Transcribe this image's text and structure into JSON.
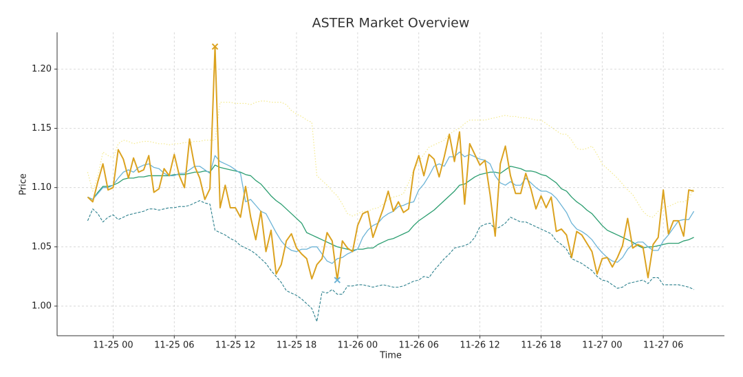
{
  "chart_data": {
    "type": "line",
    "title": "ASTER Market Overview",
    "x_label": "Time",
    "y_label": "Price",
    "x": [
      "11-24 21:30",
      "11-24 22:00",
      "11-24 22:30",
      "11-24 23:00",
      "11-24 23:30",
      "11-25 00:00",
      "11-25 00:30",
      "11-25 01:00",
      "11-25 01:30",
      "11-25 02:00",
      "11-25 02:30",
      "11-25 03:00",
      "11-25 03:30",
      "11-25 04:00",
      "11-25 04:30",
      "11-25 05:00",
      "11-25 05:30",
      "11-25 06:00",
      "11-25 06:30",
      "11-25 07:00",
      "11-25 07:30",
      "11-25 08:00",
      "11-25 08:30",
      "11-25 09:00",
      "11-25 09:30",
      "11-25 10:00",
      "11-25 10:30",
      "11-25 11:00",
      "11-25 11:30",
      "11-25 12:00",
      "11-25 12:30",
      "11-25 13:00",
      "11-25 13:30",
      "11-25 14:00",
      "11-25 14:30",
      "11-25 15:00",
      "11-25 15:30",
      "11-25 16:00",
      "11-25 16:30",
      "11-25 17:00",
      "11-25 17:30",
      "11-25 18:00",
      "11-25 18:30",
      "11-25 19:00",
      "11-25 19:30",
      "11-25 20:00",
      "11-25 20:30",
      "11-25 21:00",
      "11-25 21:30",
      "11-25 22:00",
      "11-25 22:30",
      "11-25 23:00",
      "11-25 23:30",
      "11-26 00:00",
      "11-26 00:30",
      "11-26 01:00",
      "11-26 01:30",
      "11-26 02:00",
      "11-26 02:30",
      "11-26 03:00",
      "11-26 03:30",
      "11-26 04:00",
      "11-26 04:30",
      "11-26 05:00",
      "11-26 05:30",
      "11-26 06:00",
      "11-26 06:30",
      "11-26 07:00",
      "11-26 07:30",
      "11-26 08:00",
      "11-26 08:30",
      "11-26 09:00",
      "11-26 09:30",
      "11-26 10:00",
      "11-26 10:30",
      "11-26 11:00",
      "11-26 11:30",
      "11-26 12:00",
      "11-26 12:30",
      "11-26 13:00",
      "11-26 13:30",
      "11-26 14:00",
      "11-26 14:30",
      "11-26 15:00",
      "11-26 15:30",
      "11-26 16:00",
      "11-26 16:30",
      "11-26 17:00",
      "11-26 17:30",
      "11-26 18:00",
      "11-26 18:30",
      "11-26 19:00",
      "11-26 19:30",
      "11-26 20:00",
      "11-26 20:30",
      "11-26 21:00",
      "11-26 21:30",
      "11-26 22:00",
      "11-26 22:30",
      "11-26 23:00",
      "11-26 23:30",
      "11-27 00:00",
      "11-27 00:30",
      "11-27 01:00",
      "11-27 01:30",
      "11-27 02:00",
      "11-27 02:30",
      "11-27 03:00",
      "11-27 03:30",
      "11-27 04:00",
      "11-27 04:30",
      "11-27 05:00",
      "11-27 05:30",
      "11-27 06:00",
      "11-27 06:30",
      "11-27 07:00",
      "11-27 07:30",
      "11-27 08:00",
      "11-27 08:30",
      "11-27 09:00"
    ],
    "series": [
      {
        "color": "#f3e98a",
        "style": "dotted",
        "width": 1.2,
        "values": [
          1.113,
          1.097,
          1.11,
          1.13,
          1.127,
          1.125,
          1.137,
          1.14,
          1.139,
          1.137,
          1.138,
          1.139,
          1.139,
          1.138,
          1.137,
          1.137,
          1.136,
          1.137,
          1.137,
          1.138,
          1.138,
          1.139,
          1.139,
          1.14,
          1.14,
          1.14,
          1.172,
          1.172,
          1.172,
          1.171,
          1.171,
          1.171,
          1.17,
          1.172,
          1.173,
          1.173,
          1.172,
          1.172,
          1.172,
          1.17,
          1.165,
          1.162,
          1.16,
          1.157,
          1.155,
          1.11,
          1.106,
          1.102,
          1.097,
          1.093,
          1.086,
          1.078,
          1.076,
          1.078,
          1.08,
          1.08,
          1.082,
          1.083,
          1.086,
          1.09,
          1.092,
          1.093,
          1.095,
          1.104,
          1.115,
          1.122,
          1.128,
          1.134,
          1.136,
          1.138,
          1.14,
          1.145,
          1.148,
          1.15,
          1.154,
          1.157,
          1.157,
          1.157,
          1.157,
          1.158,
          1.159,
          1.16,
          1.161,
          1.16,
          1.16,
          1.159,
          1.159,
          1.158,
          1.157,
          1.157,
          1.154,
          1.151,
          1.148,
          1.145,
          1.145,
          1.14,
          1.133,
          1.132,
          1.133,
          1.135,
          1.128,
          1.12,
          1.116,
          1.112,
          1.108,
          1.103,
          1.098,
          1.094,
          1.087,
          1.08,
          1.076,
          1.075,
          1.08,
          1.083,
          1.084,
          1.086,
          1.088,
          1.088,
          1.09,
          1.1
        ]
      },
      {
        "color": "#2a7f8c",
        "style": "dashed",
        "width": 1.1,
        "values": [
          1.072,
          1.082,
          1.078,
          1.071,
          1.075,
          1.077,
          1.073,
          1.075,
          1.077,
          1.078,
          1.079,
          1.08,
          1.082,
          1.082,
          1.081,
          1.082,
          1.083,
          1.083,
          1.084,
          1.084,
          1.085,
          1.087,
          1.089,
          1.087,
          1.086,
          1.064,
          1.062,
          1.06,
          1.057,
          1.055,
          1.051,
          1.049,
          1.047,
          1.044,
          1.04,
          1.036,
          1.03,
          1.025,
          1.02,
          1.013,
          1.011,
          1.009,
          1.006,
          1.002,
          0.998,
          0.987,
          1.012,
          1.011,
          1.014,
          1.01,
          1.01,
          1.017,
          1.017,
          1.018,
          1.018,
          1.017,
          1.016,
          1.017,
          1.018,
          1.017,
          1.016,
          1.016,
          1.017,
          1.019,
          1.021,
          1.022,
          1.025,
          1.024,
          1.03,
          1.035,
          1.04,
          1.044,
          1.049,
          1.05,
          1.051,
          1.053,
          1.058,
          1.067,
          1.069,
          1.07,
          1.065,
          1.067,
          1.07,
          1.075,
          1.073,
          1.071,
          1.071,
          1.069,
          1.067,
          1.065,
          1.063,
          1.061,
          1.055,
          1.052,
          1.048,
          1.04,
          1.038,
          1.036,
          1.033,
          1.03,
          1.025,
          1.022,
          1.021,
          1.018,
          1.015,
          1.016,
          1.019,
          1.02,
          1.021,
          1.022,
          1.019,
          1.024,
          1.024,
          1.018,
          1.018,
          1.018,
          1.018,
          1.017,
          1.016,
          1.014
        ]
      },
      {
        "color": "#2a9d6f",
        "style": "solid",
        "width": 1.3,
        "values": [
          1.092,
          1.09,
          1.096,
          1.101,
          1.101,
          1.102,
          1.104,
          1.107,
          1.108,
          1.108,
          1.109,
          1.109,
          1.11,
          1.11,
          1.11,
          1.11,
          1.11,
          1.111,
          1.111,
          1.111,
          1.112,
          1.113,
          1.113,
          1.114,
          1.113,
          1.119,
          1.117,
          1.116,
          1.115,
          1.114,
          1.113,
          1.111,
          1.11,
          1.106,
          1.103,
          1.098,
          1.093,
          1.089,
          1.086,
          1.082,
          1.078,
          1.074,
          1.07,
          1.062,
          1.06,
          1.058,
          1.056,
          1.054,
          1.052,
          1.05,
          1.049,
          1.048,
          1.047,
          1.048,
          1.048,
          1.049,
          1.049,
          1.052,
          1.054,
          1.056,
          1.057,
          1.059,
          1.061,
          1.063,
          1.068,
          1.072,
          1.075,
          1.078,
          1.081,
          1.085,
          1.089,
          1.093,
          1.097,
          1.102,
          1.103,
          1.106,
          1.109,
          1.111,
          1.112,
          1.113,
          1.113,
          1.112,
          1.115,
          1.118,
          1.117,
          1.116,
          1.114,
          1.114,
          1.113,
          1.111,
          1.11,
          1.107,
          1.104,
          1.099,
          1.097,
          1.092,
          1.088,
          1.085,
          1.081,
          1.078,
          1.073,
          1.068,
          1.064,
          1.062,
          1.06,
          1.058,
          1.056,
          1.054,
          1.051,
          1.049,
          1.05,
          1.05,
          1.051,
          1.052,
          1.053,
          1.053,
          1.053,
          1.055,
          1.056,
          1.058
        ]
      },
      {
        "color": "#6bb3d6",
        "style": "solid",
        "width": 1.3,
        "values": [
          1.092,
          1.09,
          1.095,
          1.1,
          1.1,
          1.102,
          1.108,
          1.113,
          1.115,
          1.113,
          1.117,
          1.119,
          1.12,
          1.117,
          1.116,
          1.112,
          1.11,
          1.11,
          1.112,
          1.112,
          1.115,
          1.118,
          1.118,
          1.115,
          1.112,
          1.127,
          1.122,
          1.12,
          1.118,
          1.115,
          1.112,
          1.088,
          1.09,
          1.085,
          1.08,
          1.078,
          1.07,
          1.062,
          1.055,
          1.05,
          1.047,
          1.046,
          1.048,
          1.048,
          1.05,
          1.05,
          1.044,
          1.038,
          1.036,
          1.04,
          1.041,
          1.044,
          1.046,
          1.048,
          1.058,
          1.064,
          1.068,
          1.07,
          1.075,
          1.078,
          1.08,
          1.084,
          1.085,
          1.087,
          1.088,
          1.098,
          1.103,
          1.11,
          1.118,
          1.12,
          1.118,
          1.126,
          1.126,
          1.13,
          1.126,
          1.128,
          1.126,
          1.124,
          1.123,
          1.12,
          1.11,
          1.104,
          1.102,
          1.105,
          1.102,
          1.102,
          1.108,
          1.104,
          1.1,
          1.097,
          1.097,
          1.095,
          1.091,
          1.085,
          1.079,
          1.07,
          1.065,
          1.063,
          1.06,
          1.056,
          1.05,
          1.045,
          1.041,
          1.038,
          1.037,
          1.041,
          1.048,
          1.052,
          1.054,
          1.054,
          1.05,
          1.047,
          1.047,
          1.055,
          1.06,
          1.066,
          1.072,
          1.073,
          1.073,
          1.08
        ]
      },
      {
        "color": "#dba21f",
        "style": "solid",
        "width": 2,
        "values": [
          1.092,
          1.088,
          1.105,
          1.12,
          1.098,
          1.1,
          1.132,
          1.124,
          1.108,
          1.125,
          1.113,
          1.115,
          1.127,
          1.096,
          1.099,
          1.116,
          1.11,
          1.128,
          1.11,
          1.1,
          1.141,
          1.118,
          1.108,
          1.09,
          1.099,
          1.219,
          1.083,
          1.102,
          1.083,
          1.083,
          1.075,
          1.101,
          1.075,
          1.056,
          1.08,
          1.046,
          1.064,
          1.027,
          1.035,
          1.055,
          1.061,
          1.049,
          1.044,
          1.04,
          1.023,
          1.035,
          1.04,
          1.062,
          1.055,
          1.022,
          1.055,
          1.049,
          1.046,
          1.068,
          1.078,
          1.08,
          1.058,
          1.07,
          1.082,
          1.097,
          1.08,
          1.088,
          1.079,
          1.082,
          1.114,
          1.127,
          1.11,
          1.128,
          1.124,
          1.109,
          1.126,
          1.145,
          1.122,
          1.147,
          1.086,
          1.137,
          1.128,
          1.119,
          1.123,
          1.094,
          1.059,
          1.12,
          1.135,
          1.11,
          1.095,
          1.095,
          1.112,
          1.099,
          1.082,
          1.093,
          1.083,
          1.092,
          1.063,
          1.065,
          1.06,
          1.041,
          1.063,
          1.06,
          1.053,
          1.046,
          1.027,
          1.04,
          1.041,
          1.033,
          1.041,
          1.051,
          1.074,
          1.049,
          1.052,
          1.05,
          1.024,
          1.052,
          1.058,
          1.098,
          1.061,
          1.072,
          1.072,
          1.059,
          1.098,
          1.097
        ]
      }
    ],
    "markers": [
      {
        "x": "11-25 10:00",
        "value": 1.219,
        "color": "#dba21f"
      },
      {
        "x": "11-25 22:00",
        "value": 1.022,
        "color": "#6bb3d6"
      }
    ],
    "xlim": [
      "11-24 18:30",
      "11-27 12:00"
    ],
    "xticks": [
      {
        "value": "11-25 00:00",
        "label": "11-25 00"
      },
      {
        "value": "11-25 06:00",
        "label": "11-25 06"
      },
      {
        "value": "11-25 12:00",
        "label": "11-25 12"
      },
      {
        "value": "11-25 18:00",
        "label": "11-25 18"
      },
      {
        "value": "11-26 00:00",
        "label": "11-26 00"
      },
      {
        "value": "11-26 06:00",
        "label": "11-26 06"
      },
      {
        "value": "11-26 12:00",
        "label": "11-26 12"
      },
      {
        "value": "11-26 18:00",
        "label": "11-26 18"
      },
      {
        "value": "11-27 00:00",
        "label": "11-27 00"
      },
      {
        "value": "11-27 06:00",
        "label": "11-27 06"
      }
    ],
    "ylim": [
      0.975,
      1.231
    ],
    "yticks": [
      {
        "value": 1.0,
        "label": "1.00"
      },
      {
        "value": 1.05,
        "label": "1.05"
      },
      {
        "value": 1.1,
        "label": "1.10"
      },
      {
        "value": 1.15,
        "label": "1.15"
      },
      {
        "value": 1.2,
        "label": "1.20"
      }
    ],
    "grid": true
  }
}
